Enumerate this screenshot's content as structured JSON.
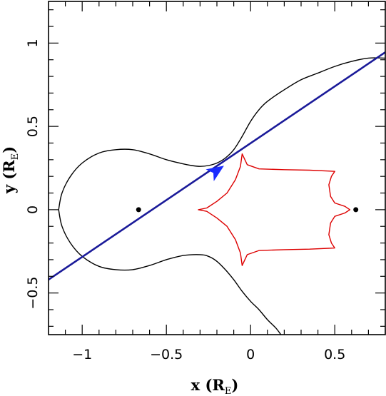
{
  "chart_data": {
    "type": "line",
    "title": "",
    "xlabel": {
      "main": "x (R",
      "sub": "E",
      "close": ")"
    },
    "ylabel": {
      "main": "y (R",
      "sub": "E",
      "close": ")"
    },
    "xlim": [
      -1.2,
      0.8
    ],
    "ylim": [
      -0.75,
      1.25
    ],
    "xticks": [
      -1,
      -0.5,
      0,
      0.5
    ],
    "xtick_labels": [
      "−1",
      "−0.5",
      "0",
      "0.5"
    ],
    "yticks": [
      -0.5,
      0,
      0.5,
      1
    ],
    "ytick_labels": [
      "−0.5",
      "0",
      "0.5",
      "1"
    ],
    "grid": false,
    "series": [
      {
        "kind": "critical-curve",
        "color": "#000000",
        "points_upper": [
          [
            0.8,
            0.91
          ],
          [
            0.7,
            0.91
          ],
          [
            0.6,
            0.89
          ],
          [
            0.5,
            0.86
          ],
          [
            0.4,
            0.82
          ],
          [
            0.3,
            0.78
          ],
          [
            0.2,
            0.72
          ],
          [
            0.1,
            0.65
          ],
          [
            0.05,
            0.6
          ],
          [
            0.0,
            0.53
          ],
          [
            -0.05,
            0.44
          ],
          [
            -0.1,
            0.36
          ],
          [
            -0.15,
            0.31
          ],
          [
            -0.2,
            0.28
          ],
          [
            -0.25,
            0.265
          ],
          [
            -0.3,
            0.26
          ],
          [
            -0.35,
            0.265
          ],
          [
            -0.4,
            0.275
          ],
          [
            -0.5,
            0.3
          ],
          [
            -0.6,
            0.335
          ],
          [
            -0.7,
            0.36
          ],
          [
            -0.8,
            0.36
          ],
          [
            -0.9,
            0.34
          ],
          [
            -1.0,
            0.28
          ],
          [
            -1.07,
            0.2
          ],
          [
            -1.12,
            0.1
          ],
          [
            -1.14,
            0.0
          ]
        ],
        "points_lower": [
          [
            -1.14,
            0.0
          ],
          [
            -1.12,
            -0.1
          ],
          [
            -1.07,
            -0.2
          ],
          [
            -1.0,
            -0.28
          ],
          [
            -0.9,
            -0.34
          ],
          [
            -0.8,
            -0.36
          ],
          [
            -0.7,
            -0.36
          ],
          [
            -0.6,
            -0.335
          ],
          [
            -0.5,
            -0.3
          ],
          [
            -0.4,
            -0.275
          ],
          [
            -0.3,
            -0.27
          ],
          [
            -0.25,
            -0.28
          ],
          [
            -0.2,
            -0.31
          ],
          [
            -0.15,
            -0.36
          ],
          [
            -0.1,
            -0.42
          ],
          [
            -0.05,
            -0.49
          ],
          [
            0.0,
            -0.55
          ],
          [
            0.05,
            -0.6
          ],
          [
            0.1,
            -0.66
          ],
          [
            0.15,
            -0.71
          ],
          [
            0.18,
            -0.75
          ]
        ]
      },
      {
        "kind": "caustic",
        "color": "#dd0000",
        "points": [
          [
            -0.05,
            0.335
          ],
          [
            -0.02,
            0.27
          ],
          [
            0.05,
            0.245
          ],
          [
            0.2,
            0.24
          ],
          [
            0.35,
            0.237
          ],
          [
            0.46,
            0.232
          ],
          [
            0.5,
            0.23
          ],
          [
            0.48,
            0.2
          ],
          [
            0.465,
            0.15
          ],
          [
            0.475,
            0.08
          ],
          [
            0.5,
            0.04
          ],
          [
            0.56,
            0.02
          ],
          [
            0.59,
            0.0
          ],
          [
            0.56,
            -0.02
          ],
          [
            0.5,
            -0.04
          ],
          [
            0.475,
            -0.08
          ],
          [
            0.465,
            -0.15
          ],
          [
            0.48,
            -0.2
          ],
          [
            0.5,
            -0.23
          ],
          [
            0.46,
            -0.232
          ],
          [
            0.35,
            -0.237
          ],
          [
            0.2,
            -0.24
          ],
          [
            0.05,
            -0.245
          ],
          [
            -0.02,
            -0.27
          ],
          [
            -0.05,
            -0.335
          ],
          [
            -0.06,
            -0.26
          ],
          [
            -0.09,
            -0.18
          ],
          [
            -0.14,
            -0.1
          ],
          [
            -0.2,
            -0.05
          ],
          [
            -0.26,
            -0.01
          ],
          [
            -0.31,
            0.0
          ],
          [
            -0.26,
            0.01
          ],
          [
            -0.2,
            0.05
          ],
          [
            -0.14,
            0.1
          ],
          [
            -0.09,
            0.18
          ],
          [
            -0.06,
            0.26
          ],
          [
            -0.05,
            0.335
          ]
        ]
      },
      {
        "kind": "source-trajectory",
        "color": "#1a1a99",
        "points": [
          [
            -1.2,
            -0.42
          ],
          [
            0.8,
            0.945
          ]
        ]
      }
    ],
    "lenses": [
      [
        -0.665,
        0.0
      ],
      [
        0.625,
        0.0
      ]
    ],
    "arrow": {
      "x": -0.2,
      "y": 0.235,
      "direction": [
        -1.2,
        -0.42,
        0.8,
        0.945
      ],
      "color": "#1a2bff"
    }
  }
}
